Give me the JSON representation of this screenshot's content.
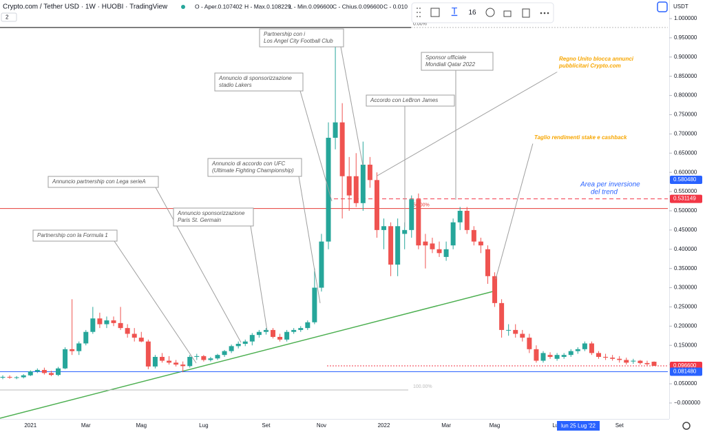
{
  "header": {
    "symbol": "Crypto.com / Tether USD · 1W · HUOBI · TradingView",
    "ohlc": [
      "O - Aper.0.107402",
      "H - Max.0.108229",
      "L - Min.0.096600",
      "C - Chius.0.096600",
      "C - 0.010"
    ],
    "layers": "2",
    "currency": "USDT"
  },
  "toolbar": {
    "size": "16"
  },
  "crosshair_label": "lun 25 Lug '22",
  "chart_data": {
    "type": "candlestick",
    "categories": [
      null,
      null,
      null,
      null,
      "2021",
      null,
      null,
      null,
      null,
      null,
      null,
      null,
      "Mar",
      null,
      null,
      null,
      null,
      null,
      null,
      null,
      "Mag",
      null,
      null,
      null,
      null,
      null,
      null,
      null,
      null,
      "Lug",
      null,
      null,
      null,
      null,
      null,
      null,
      null,
      null,
      "Set",
      null,
      null,
      null,
      null,
      null,
      null,
      null,
      "Nov",
      null,
      null,
      null,
      null,
      null,
      null,
      null,
      null,
      "2022",
      null,
      null,
      null,
      null,
      null,
      null,
      null,
      null,
      "Mar",
      null,
      null,
      null,
      null,
      null,
      null,
      "Mag",
      null,
      null,
      null,
      null,
      null,
      null,
      null,
      null,
      "Lug",
      null,
      null,
      null,
      null,
      null,
      null,
      null,
      null,
      "Set",
      null,
      null,
      null,
      null,
      null
    ],
    "open": [
      0.066,
      0.068,
      0.066,
      0.067,
      0.072,
      0.082,
      0.086,
      0.078,
      0.073,
      0.09,
      0.14,
      0.135,
      0.155,
      0.185,
      0.22,
      0.205,
      0.215,
      0.208,
      0.195,
      0.18,
      0.17,
      0.16,
      0.095,
      0.12,
      0.11,
      0.105,
      0.1,
      0.096,
      0.12,
      0.122,
      0.112,
      0.116,
      0.125,
      0.135,
      0.148,
      0.154,
      0.16,
      0.177,
      0.185,
      0.19,
      0.172,
      0.165,
      0.185,
      0.19,
      0.195,
      0.21,
      0.3,
      0.42,
      0.69,
      0.73,
      0.59,
      0.59,
      0.52,
      0.62,
      0.58,
      0.45,
      0.46,
      0.36,
      0.44,
      0.45,
      0.53,
      0.42,
      0.415,
      0.4,
      0.38,
      0.41,
      0.47,
      0.5,
      0.45,
      0.42,
      0.4,
      0.33,
      0.26,
      0.19,
      0.19,
      0.18,
      0.17,
      0.14,
      0.11,
      0.125,
      0.115,
      0.12,
      0.125,
      0.135,
      0.14,
      0.155,
      0.13,
      0.12,
      0.118,
      0.115,
      0.112,
      0.108,
      0.11,
      0.104,
      0.107402
    ],
    "high": [
      0.072,
      0.072,
      0.07,
      0.075,
      0.085,
      0.09,
      0.092,
      0.084,
      0.094,
      0.145,
      0.27,
      0.16,
      0.19,
      0.25,
      0.235,
      0.225,
      0.225,
      0.25,
      0.205,
      0.195,
      0.185,
      0.165,
      0.125,
      0.13,
      0.122,
      0.112,
      0.108,
      0.125,
      0.128,
      0.125,
      0.12,
      0.128,
      0.138,
      0.152,
      0.16,
      0.165,
      0.182,
      0.19,
      0.195,
      0.195,
      0.18,
      0.19,
      0.195,
      0.2,
      0.215,
      0.35,
      0.44,
      0.73,
      0.97,
      0.78,
      0.64,
      0.65,
      0.68,
      0.64,
      0.6,
      0.48,
      0.47,
      0.48,
      0.47,
      0.54,
      0.545,
      0.44,
      0.43,
      0.42,
      0.42,
      0.48,
      0.51,
      0.51,
      0.46,
      0.43,
      0.41,
      0.34,
      0.27,
      0.205,
      0.205,
      0.19,
      0.18,
      0.15,
      0.135,
      0.132,
      0.13,
      0.13,
      0.14,
      0.145,
      0.16,
      0.16,
      0.135,
      0.128,
      0.125,
      0.122,
      0.118,
      0.115,
      0.112,
      0.11,
      0.108229
    ],
    "low": [
      0.062,
      0.063,
      0.062,
      0.064,
      0.07,
      0.078,
      0.074,
      0.07,
      0.07,
      0.088,
      0.125,
      0.125,
      0.15,
      0.18,
      0.195,
      0.195,
      0.2,
      0.19,
      0.17,
      0.16,
      0.158,
      0.088,
      0.09,
      0.105,
      0.1,
      0.095,
      0.08,
      0.092,
      0.112,
      0.108,
      0.108,
      0.112,
      0.12,
      0.13,
      0.142,
      0.148,
      0.15,
      0.17,
      0.178,
      0.168,
      0.16,
      0.16,
      0.18,
      0.185,
      0.19,
      0.205,
      0.29,
      0.4,
      0.66,
      0.48,
      0.5,
      0.51,
      0.5,
      0.56,
      0.43,
      0.4,
      0.33,
      0.33,
      0.4,
      0.43,
      0.4,
      0.35,
      0.39,
      0.38,
      0.37,
      0.4,
      0.45,
      0.44,
      0.41,
      0.39,
      0.31,
      0.25,
      0.17,
      0.175,
      0.17,
      0.16,
      0.13,
      0.105,
      0.105,
      0.115,
      0.11,
      0.115,
      0.12,
      0.128,
      0.135,
      0.125,
      0.115,
      0.112,
      0.11,
      0.105,
      0.1,
      0.102,
      0.1,
      0.098,
      0.0966
    ],
    "close": [
      0.068,
      0.066,
      0.067,
      0.072,
      0.082,
      0.086,
      0.078,
      0.073,
      0.09,
      0.14,
      0.135,
      0.155,
      0.185,
      0.22,
      0.205,
      0.215,
      0.208,
      0.195,
      0.18,
      0.17,
      0.16,
      0.095,
      0.12,
      0.11,
      0.105,
      0.1,
      0.096,
      0.12,
      0.122,
      0.112,
      0.116,
      0.125,
      0.135,
      0.148,
      0.154,
      0.16,
      0.177,
      0.185,
      0.19,
      0.172,
      0.165,
      0.185,
      0.19,
      0.195,
      0.21,
      0.3,
      0.42,
      0.69,
      0.73,
      0.59,
      0.54,
      0.52,
      0.62,
      0.58,
      0.45,
      0.46,
      0.36,
      0.46,
      0.45,
      0.53,
      0.41,
      0.41,
      0.4,
      0.39,
      0.4,
      0.47,
      0.5,
      0.45,
      0.42,
      0.41,
      0.33,
      0.26,
      0.19,
      0.19,
      0.18,
      0.17,
      0.14,
      0.11,
      0.13,
      0.12,
      0.125,
      0.125,
      0.135,
      0.14,
      0.155,
      0.13,
      0.12,
      0.118,
      0.115,
      0.112,
      0.105,
      0.11,
      0.104,
      0.101,
      0.0966
    ],
    "up_color": "#26a69a",
    "down_color": "#ef5350",
    "ylim": [
      -0.041,
      1.0
    ],
    "yticks": [
      {
        "value": 1.0,
        "label": "1.000000"
      },
      {
        "value": 0.95,
        "label": "0.950000"
      },
      {
        "value": 0.9,
        "label": "0.900000"
      },
      {
        "value": 0.85,
        "label": "0.850000"
      },
      {
        "value": 0.8,
        "label": "0.800000"
      },
      {
        "value": 0.75,
        "label": "0.750000"
      },
      {
        "value": 0.7,
        "label": "0.700000"
      },
      {
        "value": 0.65,
        "label": "0.650000"
      },
      {
        "value": 0.6,
        "label": "0.600000"
      },
      {
        "value": 0.55,
        "label": "0.550000"
      },
      {
        "value": 0.5,
        "label": "0.500000"
      },
      {
        "value": 0.45,
        "label": "0.450000"
      },
      {
        "value": 0.4,
        "label": "0.400000"
      },
      {
        "value": 0.35,
        "label": "0.350000"
      },
      {
        "value": 0.3,
        "label": "0.300000"
      },
      {
        "value": 0.25,
        "label": "0.250000"
      },
      {
        "value": 0.2,
        "label": "0.200000"
      },
      {
        "value": 0.15,
        "label": "0.150000"
      },
      {
        "value": 0.1,
        "label": "0.100000"
      },
      {
        "value": 0.05,
        "label": "0.050000"
      },
      {
        "value": 0,
        "label": "−0.000000"
      }
    ],
    "price_labels": [
      {
        "value": 0.58048,
        "label": "0.580480",
        "color": "#2962ff"
      },
      {
        "value": 0.531149,
        "label": "0.531149",
        "color": "#f23645"
      },
      {
        "value": 0.0966,
        "label": "0.096600",
        "color": "#f23645"
      },
      {
        "value": 0.08148,
        "label": "0.081480",
        "color": "#2962ff"
      }
    ],
    "fib_levels": [
      {
        "value": 0.977,
        "label": "0.00%",
        "color": "#555555"
      },
      {
        "value": 0.506,
        "label": "50.00%",
        "color": "#e53935"
      },
      {
        "value": 0.034,
        "label": "100.00%",
        "color": "#bbbbbb"
      }
    ],
    "area_note": [
      "Area per inversione",
      "del trend"
    ],
    "annotations": [
      {
        "lines": [
          "Partnership con i",
          "Los Angel City Football Club"
        ],
        "color": "#555555"
      },
      {
        "lines": [
          "Annuncio di sponsorizzazione",
          "stadio Lakers"
        ],
        "color": "#555555"
      },
      {
        "lines": [
          "Accordo con LeBron James"
        ],
        "color": "#555555"
      },
      {
        "lines": [
          "Sponsor ufficiale",
          "Mondiali Qatar 2022"
        ],
        "color": "#555555"
      },
      {
        "lines": [
          "Regno Unito blocca annunci",
          "pubblicitari Crypto.com"
        ],
        "color": "#f7a600"
      },
      {
        "lines": [
          "Taglio rendimenti stake e cashback"
        ],
        "color": "#f7a600"
      },
      {
        "lines": [
          "Annuncio di accordo con UFC",
          "(Ultimate Fighting Championship)"
        ],
        "color": "#555555"
      },
      {
        "lines": [
          "Annuncio partnership con Lega serieA"
        ],
        "color": "#555555"
      },
      {
        "lines": [
          "Annuncio sponsorizzazione",
          "Paris St. Germain"
        ],
        "color": "#555555"
      },
      {
        "lines": [
          "Partnership con la Formula 1"
        ],
        "color": "#555555"
      }
    ]
  }
}
